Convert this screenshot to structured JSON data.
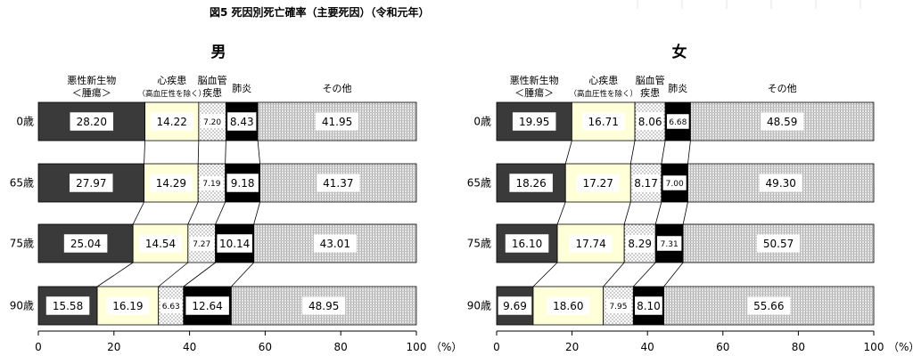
{
  "title": "図5 死因別死亡確率（主要死因）（令和元年）",
  "unit_label": "（%）",
  "charts_meta": {
    "categories": [
      {
        "key": "neoplasm",
        "lines": [
          "悪性新生物",
          "＜腫瘍＞"
        ]
      },
      {
        "key": "heart",
        "lines": [
          "心疾患",
          "（高血圧性を除く）"
        ]
      },
      {
        "key": "cerebro",
        "lines": [
          "脳血管",
          "疾患"
        ]
      },
      {
        "key": "pneumonia",
        "lines": [
          "肺炎"
        ]
      },
      {
        "key": "other",
        "lines": [
          "その他"
        ]
      }
    ],
    "colors": {
      "neoplasm": "#3a3a3a",
      "heart": "#ffffd8",
      "cerebro": "dots",
      "pneumonia": "#000000",
      "other": "hatch"
    }
  },
  "chart_data": [
    {
      "type": "bar",
      "orientation": "horizontal",
      "stacked": true,
      "title": "男",
      "categories": [
        "0歳",
        "65歳",
        "75歳",
        "90歳"
      ],
      "xlim": [
        0,
        100
      ],
      "xticks": [
        "0",
        "20",
        "40",
        "60",
        "80",
        "100"
      ],
      "series": [
        {
          "name": "悪性新生物＜腫瘍＞",
          "values": [
            28.2,
            27.97,
            25.04,
            15.58
          ]
        },
        {
          "name": "心疾患（高血圧性を除く）",
          "values": [
            14.22,
            14.29,
            14.54,
            16.19
          ]
        },
        {
          "name": "脳血管疾患",
          "values": [
            7.2,
            7.19,
            7.27,
            6.63
          ]
        },
        {
          "name": "肺炎",
          "values": [
            8.43,
            9.18,
            10.14,
            12.64
          ]
        },
        {
          "name": "その他",
          "values": [
            41.95,
            41.37,
            43.01,
            48.95
          ]
        }
      ],
      "labels": [
        [
          "28.20",
          "14.22",
          "7.20",
          "8.43",
          "41.95"
        ],
        [
          "27.97",
          "14.29",
          "7.19",
          "9.18",
          "41.37"
        ],
        [
          "25.04",
          "14.54",
          "7.27",
          "10.14",
          "43.01"
        ],
        [
          "15.58",
          "16.19",
          "6.63",
          "12.64",
          "48.95"
        ]
      ]
    },
    {
      "type": "bar",
      "orientation": "horizontal",
      "stacked": true,
      "title": "女",
      "categories": [
        "0歳",
        "65歳",
        "75歳",
        "90歳"
      ],
      "xlim": [
        0,
        100
      ],
      "xticks": [
        "0",
        "20",
        "40",
        "60",
        "80",
        "100"
      ],
      "series": [
        {
          "name": "悪性新生物＜腫瘍＞",
          "values": [
            19.95,
            18.26,
            16.1,
            9.69
          ]
        },
        {
          "name": "心疾患（高血圧性を除く）",
          "values": [
            16.71,
            17.27,
            17.74,
            18.6
          ]
        },
        {
          "name": "脳血管疾患",
          "values": [
            8.06,
            8.17,
            8.29,
            7.95
          ]
        },
        {
          "name": "肺炎",
          "values": [
            6.68,
            7.0,
            7.31,
            8.1
          ]
        },
        {
          "name": "その他",
          "values": [
            48.59,
            49.3,
            50.57,
            55.66
          ]
        }
      ],
      "labels": [
        [
          "19.95",
          "16.71",
          "8.06",
          "6.68",
          "48.59"
        ],
        [
          "18.26",
          "17.27",
          "8.17",
          "7.00",
          "49.30"
        ],
        [
          "16.10",
          "17.74",
          "8.29",
          "7.31",
          "50.57"
        ],
        [
          "9.69",
          "18.60",
          "7.95",
          "8.10",
          "55.66"
        ]
      ]
    }
  ]
}
